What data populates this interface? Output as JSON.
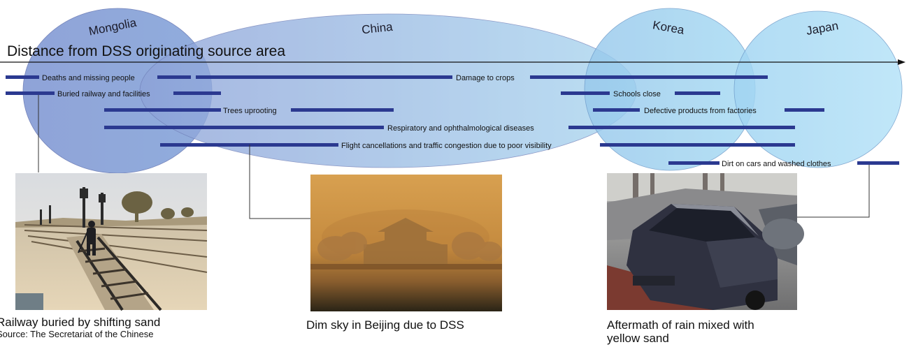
{
  "regions": [
    {
      "id": "mongolia",
      "label": "Mongolia"
    },
    {
      "id": "china",
      "label": "China"
    },
    {
      "id": "korea",
      "label": "Korea"
    },
    {
      "id": "japan",
      "label": "Japan"
    }
  ],
  "axis": {
    "label": "Distance from DSS originating source area"
  },
  "impacts": [
    {
      "id": "deaths",
      "label": "Deaths and missing people"
    },
    {
      "id": "crops",
      "label": "Damage to crops"
    },
    {
      "id": "railway",
      "label": "Buried railway and facilities"
    },
    {
      "id": "schools",
      "label": "Schools close"
    },
    {
      "id": "trees",
      "label": "Trees uprooting"
    },
    {
      "id": "defective",
      "label": "Defective products from factories"
    },
    {
      "id": "respiratory",
      "label": "Respiratory and ophthalmological diseases"
    },
    {
      "id": "flight",
      "label": "Flight cancellations and traffic congestion due to poor visibility"
    },
    {
      "id": "dirt",
      "label": "Dirt on cars and washed clothes"
    }
  ],
  "photos": [
    {
      "id": "railway-photo",
      "caption_line1": "Railway buried by shifting sand",
      "caption_line2": "Source: The Secretariat of the Chinese"
    },
    {
      "id": "beijing-photo",
      "caption_line1": "Dim sky in Beijing due to DSS"
    },
    {
      "id": "car-photo",
      "caption_line1": "Aftermath of rain mixed with",
      "caption_line2": "yellow sand"
    }
  ],
  "colors": {
    "bar": "#2b3990",
    "ellipse_dark": "#7f94cf",
    "ellipse_light": "#9fd6f2"
  }
}
